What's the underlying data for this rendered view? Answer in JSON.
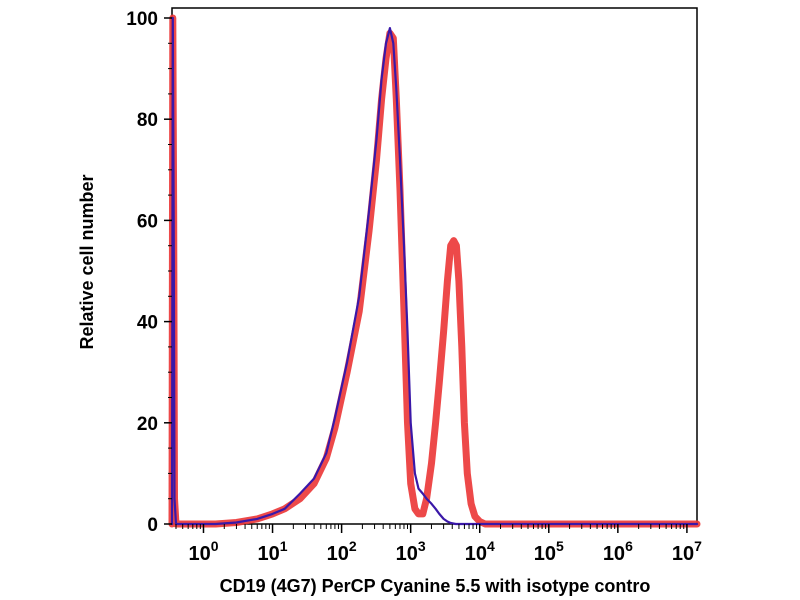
{
  "chart_data": {
    "type": "line",
    "xlabel": "CD19 (4G7) PerCP Cyanine 5.5 with isotype contro",
    "ylabel": "Relative cell number",
    "x_scale": "log",
    "xlim": [
      0.35,
      14000000
    ],
    "ylim": [
      0,
      100
    ],
    "x_ticks": [
      {
        "value": 1,
        "base": "10",
        "exp": "0"
      },
      {
        "value": 10,
        "base": "10",
        "exp": "1"
      },
      {
        "value": 100,
        "base": "10",
        "exp": "2"
      },
      {
        "value": 1000,
        "base": "10",
        "exp": "3"
      },
      {
        "value": 10000,
        "base": "10",
        "exp": "4"
      },
      {
        "value": 100000,
        "base": "10",
        "exp": "5"
      },
      {
        "value": 1000000,
        "base": "10",
        "exp": "6"
      },
      {
        "value": 10000000,
        "base": "10",
        "exp": "7"
      }
    ],
    "y_ticks": [
      "0",
      "20",
      "40",
      "60",
      "80",
      "100"
    ],
    "grid": false,
    "series": [
      {
        "color": "#ec3a3a",
        "x": [
          0.35,
          0.36,
          0.37,
          0.38,
          0.4,
          0.45,
          1.5,
          3,
          6,
          10,
          15,
          25,
          40,
          60,
          80,
          120,
          180,
          250,
          320,
          380,
          440,
          500,
          560,
          620,
          700,
          800,
          900,
          1000,
          1150,
          1300,
          1500,
          1700,
          2000,
          2300,
          2600,
          3000,
          3400,
          3800,
          4200,
          4600,
          5000,
          5500,
          6000,
          6600,
          7500,
          8500,
          10000,
          12000,
          14000,
          20000,
          14000000
        ],
        "y": [
          0,
          100,
          60,
          5,
          0,
          0,
          0,
          0.3,
          1,
          2,
          3,
          5,
          8,
          13,
          19,
          30,
          42,
          58,
          72,
          84,
          92,
          97,
          96,
          84,
          66,
          42,
          20,
          8,
          3,
          2,
          2,
          5,
          12,
          20,
          28,
          38,
          48,
          55,
          56,
          55,
          48,
          35,
          20,
          10,
          4,
          1.5,
          0.5,
          0,
          0,
          0,
          0
        ]
      },
      {
        "color": "#3a18a8",
        "x": [
          0.35,
          0.36,
          0.37,
          0.38,
          0.4,
          0.45,
          1.5,
          3,
          6,
          10,
          15,
          25,
          40,
          60,
          80,
          120,
          180,
          250,
          320,
          380,
          440,
          500,
          560,
          620,
          700,
          800,
          900,
          1000,
          1150,
          1300,
          1500,
          1700,
          2000,
          2300,
          2600,
          3000,
          3400,
          3800,
          4500,
          6000,
          20000,
          14000000
        ],
        "y": [
          0,
          100,
          60,
          5,
          0,
          0,
          0,
          0.3,
          1,
          2,
          3,
          6,
          9,
          14,
          21,
          32,
          45,
          62,
          76,
          88,
          95,
          98,
          95,
          86,
          72,
          55,
          38,
          20,
          10,
          7,
          6,
          5,
          4,
          3,
          2,
          1,
          0.5,
          0.2,
          0,
          0,
          0,
          0
        ]
      }
    ]
  }
}
